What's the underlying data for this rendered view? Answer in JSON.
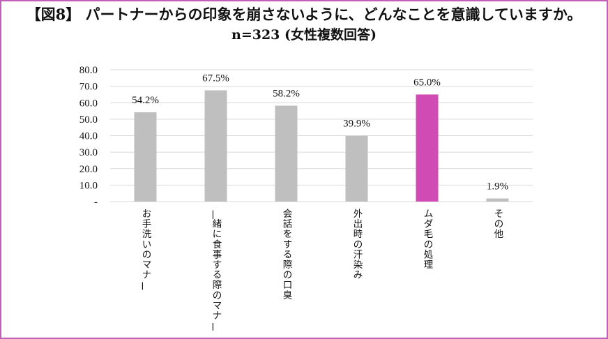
{
  "title": "【図8】 パートナーからの印象を崩さないように、どんなことを意識していますか。",
  "subtitle": "n=323 (女性複数回答)",
  "colors": {
    "bar_default": "#bfbfbf",
    "bar_highlight": "#d04bb4",
    "grid": "#d9d9d9",
    "frame": "#c060b8"
  },
  "chart_data": {
    "type": "bar",
    "title": "【図8】 パートナーからの印象を崩さないように、どんなことを意識していますか。",
    "subtitle": "n=323 (女性複数回答)",
    "categories": [
      "お手洗いのマナー",
      "一緒に食事する際のマナー",
      "会話をする際の口臭",
      "外出時の汗染み",
      "ムダ毛の処理",
      "その他"
    ],
    "values": [
      54.2,
      67.5,
      58.2,
      39.9,
      65.0,
      1.9
    ],
    "data_labels": [
      "54.2%",
      "67.5%",
      "58.2%",
      "39.9%",
      "65.0%",
      "1.9%"
    ],
    "highlight_index": 4,
    "ylim": [
      0,
      80
    ],
    "y_ticks": [
      "-",
      "10.0",
      "20.0",
      "30.0",
      "40.0",
      "50.0",
      "60.0",
      "70.0",
      "80.0"
    ],
    "y_tick_values": [
      0,
      10,
      20,
      30,
      40,
      50,
      60,
      70,
      80
    ],
    "xlabel": "",
    "ylabel": "",
    "grid": true,
    "legend": "none"
  }
}
